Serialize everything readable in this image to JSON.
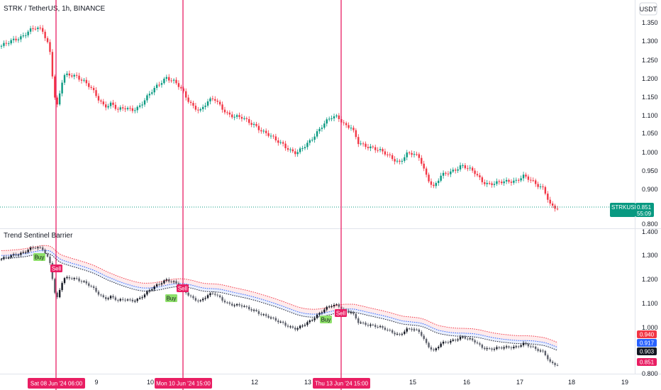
{
  "header": {
    "symbol_title": "STRK / TetherUS, 1h, BINANCE",
    "currency_button": "USDT"
  },
  "indicator": {
    "name": "Trend Sentinel Barrier"
  },
  "price_axis": {
    "ticks": [
      "1.350",
      "1.300",
      "1.250",
      "1.200",
      "1.150",
      "1.100",
      "1.050",
      "1.000",
      "0.950",
      "0.900",
      "0.800"
    ]
  },
  "indicator_axis": {
    "ticks": [
      "1.400",
      "1.300",
      "1.200",
      "1.100",
      "1.000",
      "0.800"
    ]
  },
  "last_price": {
    "label": "STRKUSDT",
    "value": "0.851",
    "countdown": "55:09",
    "color": "#089981"
  },
  "indicator_badges": [
    {
      "value": "0.940",
      "color": "#f23645"
    },
    {
      "value": "0.917",
      "color": "#2962ff"
    },
    {
      "value": "0.903",
      "color": "#131722"
    },
    {
      "value": "0.851",
      "color": "#e91e63"
    }
  ],
  "time_axis": {
    "ticks": [
      "9",
      "10",
      "12",
      "13",
      "15",
      "16",
      "17",
      "18",
      "19"
    ],
    "flags": [
      "Sat 08 Jun '24  06:00",
      "Mon 10 Jun '24  15:00",
      "Thu 13 Jun '24  15:00"
    ]
  },
  "signals": [
    {
      "label": "Buy",
      "type": "buy"
    },
    {
      "label": "Sell",
      "type": "sell"
    },
    {
      "label": "Sell",
      "type": "sell"
    },
    {
      "label": "Buy",
      "type": "buy"
    },
    {
      "label": "Buy",
      "type": "buy"
    },
    {
      "label": "Sell",
      "type": "sell"
    }
  ],
  "colors": {
    "up": "#089981",
    "down": "#f23645",
    "marker_line": "#e91e63",
    "upper_band": "#f23645",
    "mid_band": "#2962ff",
    "lower_band": "#131722",
    "buy_bg": "#8ee06a",
    "sell_bg": "#e91e63"
  },
  "chart_data": {
    "type": "candlestick",
    "series_anchor_closes": [
      1.293,
      1.3,
      1.31,
      1.32,
      1.335,
      1.34,
      1.333,
      1.29,
      1.12,
      1.21,
      1.213,
      1.212,
      1.2,
      1.18,
      1.15,
      1.13,
      1.14,
      1.12,
      1.123,
      1.12,
      1.13,
      1.15,
      1.17,
      1.19,
      1.21,
      1.2,
      1.18,
      1.15,
      1.13,
      1.12,
      1.14,
      1.15,
      1.13,
      1.11,
      1.1,
      1.098,
      1.09,
      1.08,
      1.06,
      1.05,
      1.04,
      1.03,
      1.01,
      1.0,
      1.02,
      1.04,
      1.06,
      1.08,
      1.1,
      1.105,
      1.08,
      1.07,
      1.03,
      1.025,
      1.02,
      1.01,
      1.0,
      0.99,
      0.98,
      1.0,
      1.0,
      0.99,
      0.94,
      0.91,
      0.94,
      0.95,
      0.96,
      0.97,
      0.96,
      0.95,
      0.93,
      0.92,
      0.92,
      0.925,
      0.93,
      0.93,
      0.94,
      0.93,
      0.92,
      0.91,
      0.86,
      0.851
    ],
    "price_range": [
      0.8,
      1.37
    ],
    "indicator_range": [
      0.8,
      1.4
    ]
  }
}
